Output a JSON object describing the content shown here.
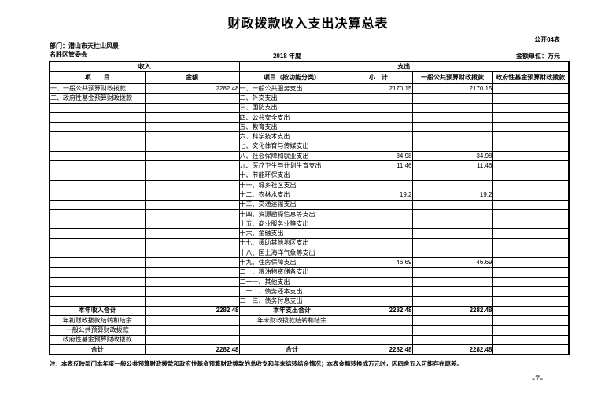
{
  "page": {
    "title": "财政拨款收入支出决算总表",
    "form_code": "公开04表",
    "department_line1": "部门：潜山市天柱山风景",
    "department_line2": "名胜区管委会",
    "year": "2018 年度",
    "unit": "金额单位：万元",
    "note": "注：本表反映部门本年度一般公共预算财政拨款和政府性基金预算财政拨款的总收支和年末结转结余情况；本表金额转换成万元时，因四舍五入可能存在尾差。",
    "page_number": "-7-"
  },
  "table": {
    "group_headers": [
      "收入",
      "支出"
    ],
    "columns": [
      "项　　目",
      "金额",
      "项目（按功能分类）",
      "小　计",
      "一般公共预算财政拨款",
      "政府性基金预算财政拨款"
    ],
    "rows": [
      {
        "type": "normal",
        "income_item": "一、一般公共预算财政拨款",
        "income_amount": "2282.48",
        "expense_item": "一、一般公共服务支出",
        "subtotal": "2170.15",
        "general_budget": "2170.15",
        "gov_fund": ""
      },
      {
        "type": "normal",
        "income_item": "二、政府性基金预算财政拨款",
        "income_amount": "",
        "expense_item": "二、外交支出",
        "subtotal": "",
        "general_budget": "",
        "gov_fund": ""
      },
      {
        "type": "normal",
        "income_item": "",
        "income_amount": "",
        "expense_item": "三、国防支出",
        "subtotal": "",
        "general_budget": "",
        "gov_fund": ""
      },
      {
        "type": "normal",
        "income_item": "",
        "income_amount": "",
        "expense_item": "四、公共安全支出",
        "subtotal": "",
        "general_budget": "",
        "gov_fund": ""
      },
      {
        "type": "normal",
        "income_item": "",
        "income_amount": "",
        "expense_item": "五、教育支出",
        "subtotal": "",
        "general_budget": "",
        "gov_fund": ""
      },
      {
        "type": "normal",
        "income_item": "",
        "income_amount": "",
        "expense_item": "六、科学技术支出",
        "subtotal": "",
        "general_budget": "",
        "gov_fund": ""
      },
      {
        "type": "normal",
        "income_item": "",
        "income_amount": "",
        "expense_item": "七、文化体育与传媒支出",
        "subtotal": "",
        "general_budget": "",
        "gov_fund": ""
      },
      {
        "type": "normal",
        "income_item": "",
        "income_amount": "",
        "expense_item": "八、社会保障和就业支出",
        "subtotal": "34.98",
        "general_budget": "34.98",
        "gov_fund": ""
      },
      {
        "type": "normal",
        "income_item": "",
        "income_amount": "",
        "expense_item": "九、医疗卫生与计划生育支出",
        "subtotal": "11.46",
        "general_budget": "11.46",
        "gov_fund": ""
      },
      {
        "type": "normal",
        "income_item": "",
        "income_amount": "",
        "expense_item": "十、节能环保支出",
        "subtotal": "",
        "general_budget": "",
        "gov_fund": ""
      },
      {
        "type": "normal",
        "income_item": "",
        "income_amount": "",
        "expense_item": "十一、城乡社区支出",
        "subtotal": "",
        "general_budget": "",
        "gov_fund": ""
      },
      {
        "type": "normal",
        "income_item": "",
        "income_amount": "",
        "expense_item": "十二、农林水支出",
        "subtotal": "19.2",
        "general_budget": "19.2",
        "gov_fund": ""
      },
      {
        "type": "normal",
        "income_item": "",
        "income_amount": "",
        "expense_item": "十三、交通运输支出",
        "subtotal": "",
        "general_budget": "",
        "gov_fund": ""
      },
      {
        "type": "normal",
        "income_item": "",
        "income_amount": "",
        "expense_item": "十四、资源勘探信息等支出",
        "subtotal": "",
        "general_budget": "",
        "gov_fund": ""
      },
      {
        "type": "normal",
        "income_item": "",
        "income_amount": "",
        "expense_item": "十五、商业服务业等支出",
        "subtotal": "",
        "general_budget": "",
        "gov_fund": ""
      },
      {
        "type": "normal",
        "income_item": "",
        "income_amount": "",
        "expense_item": "十六、金融支出",
        "subtotal": "",
        "general_budget": "",
        "gov_fund": ""
      },
      {
        "type": "normal",
        "income_item": "",
        "income_amount": "",
        "expense_item": "十七、援助其他地区支出",
        "subtotal": "",
        "general_budget": "",
        "gov_fund": ""
      },
      {
        "type": "normal",
        "income_item": "",
        "income_amount": "",
        "expense_item": "十八、国土海洋气象等支出",
        "subtotal": "",
        "general_budget": "",
        "gov_fund": ""
      },
      {
        "type": "normal",
        "income_item": "",
        "income_amount": "",
        "expense_item": "十九、住房保障支出",
        "subtotal": "46.69",
        "general_budget": "46.69",
        "gov_fund": ""
      },
      {
        "type": "normal",
        "income_item": "",
        "income_amount": "",
        "expense_item": "二十、粮油物资储备支出",
        "subtotal": "",
        "general_budget": "",
        "gov_fund": ""
      },
      {
        "type": "normal",
        "income_item": "",
        "income_amount": "",
        "expense_item": "二十一、其他支出",
        "subtotal": "",
        "general_budget": "",
        "gov_fund": ""
      },
      {
        "type": "normal",
        "income_item": "",
        "income_amount": "",
        "expense_item": "二十二、债务还本支出",
        "subtotal": "",
        "general_budget": "",
        "gov_fund": ""
      },
      {
        "type": "normal",
        "income_item": "",
        "income_amount": "",
        "expense_item": "二十三、债务付息支出",
        "subtotal": "",
        "general_budget": "",
        "gov_fund": ""
      },
      {
        "type": "total",
        "income_item": "本年收入合计",
        "income_amount": "2282.48",
        "expense_item": "本年支出合计",
        "subtotal": "2282.48",
        "general_budget": "2282.48",
        "gov_fund": ""
      },
      {
        "type": "center",
        "income_item": "年初财政拨款结转和结余",
        "income_amount": "",
        "expense_item": "年末财政拨款结转和结余",
        "subtotal": "",
        "general_budget": "",
        "gov_fund": ""
      },
      {
        "type": "center",
        "income_item": "一般公共预算财政拨款",
        "income_amount": "",
        "expense_item": "",
        "subtotal": "",
        "general_budget": "",
        "gov_fund": ""
      },
      {
        "type": "center",
        "income_item": "政府性基金预算财政拨款",
        "income_amount": "",
        "expense_item": "",
        "subtotal": "",
        "general_budget": "",
        "gov_fund": ""
      },
      {
        "type": "total",
        "income_item": "合计",
        "income_amount": "2282.48",
        "expense_item": "合计",
        "subtotal": "2282.48",
        "general_budget": "2282.48",
        "gov_fund": ""
      }
    ]
  }
}
